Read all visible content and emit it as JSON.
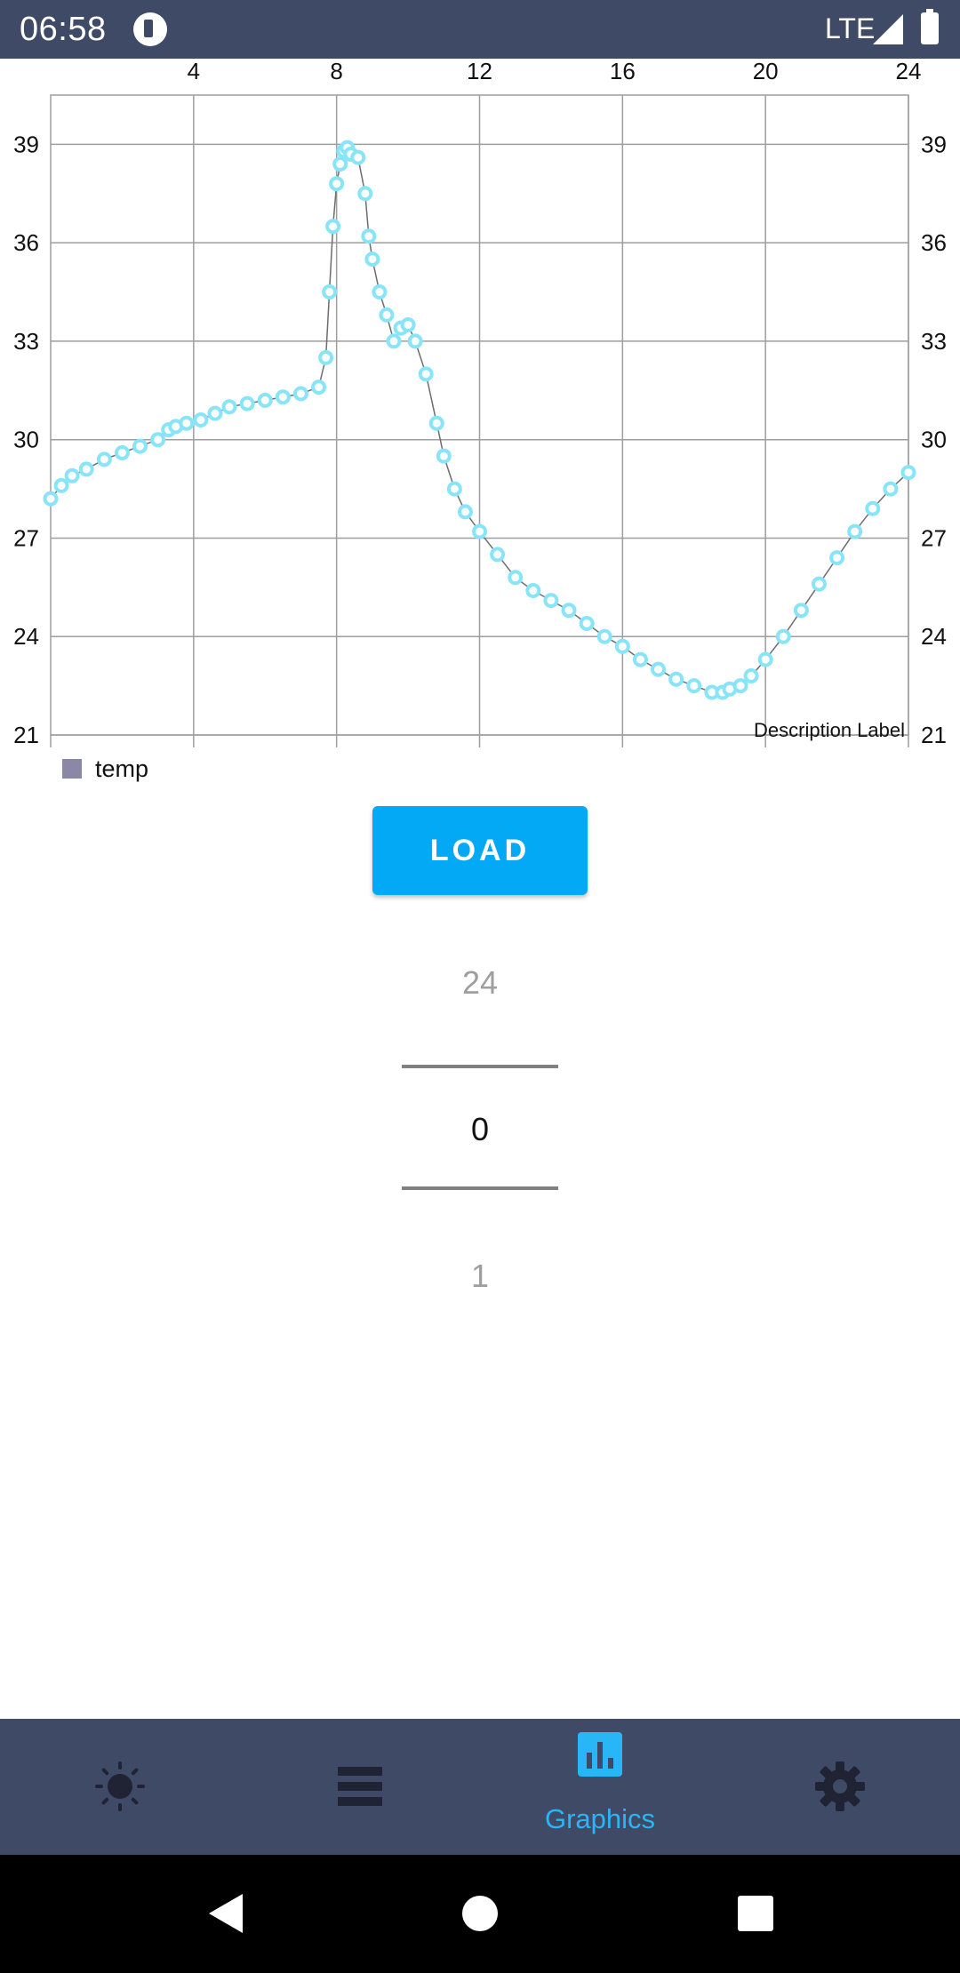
{
  "status_bar": {
    "time": "06:58",
    "network": "LTE",
    "icons": [
      "app-notification-icon",
      "signal-icon",
      "battery-icon"
    ]
  },
  "chart_data": {
    "type": "scatter",
    "x_ticks": [
      4,
      8,
      12,
      16,
      20,
      24
    ],
    "y_ticks": [
      21,
      24,
      27,
      30,
      33,
      36,
      39
    ],
    "xlim": [
      0,
      24
    ],
    "ylim": [
      21,
      40.5
    ],
    "grid": true,
    "legend": "bottom-left",
    "description": "Description Label",
    "series": [
      {
        "name": "temp",
        "color": "#88e5f9",
        "x": [
          0.0,
          0.3,
          0.6,
          1.0,
          1.5,
          2.0,
          2.5,
          3.0,
          3.3,
          3.5,
          3.8,
          4.2,
          4.6,
          5.0,
          5.5,
          6.0,
          6.5,
          7.0,
          7.5,
          7.7,
          7.8,
          7.9,
          8.0,
          8.1,
          8.2,
          8.3,
          8.4,
          8.6,
          8.8,
          8.9,
          9.0,
          9.2,
          9.4,
          9.6,
          9.8,
          10.0,
          10.2,
          10.5,
          10.8,
          11.0,
          11.3,
          11.6,
          12.0,
          12.5,
          13.0,
          13.5,
          14.0,
          14.5,
          15.0,
          15.5,
          16.0,
          16.5,
          17.0,
          17.5,
          18.0,
          18.5,
          18.8,
          19.0,
          19.3,
          19.6,
          20.0,
          20.5,
          21.0,
          21.5,
          22.0,
          22.5,
          23.0,
          23.5,
          24.0
        ],
        "y": [
          28.2,
          28.6,
          28.9,
          29.1,
          29.4,
          29.6,
          29.8,
          30.0,
          30.3,
          30.4,
          30.5,
          30.6,
          30.8,
          31.0,
          31.1,
          31.2,
          31.3,
          31.4,
          31.6,
          32.5,
          34.5,
          36.5,
          37.8,
          38.4,
          38.8,
          38.9,
          38.7,
          38.6,
          37.5,
          36.2,
          35.5,
          34.5,
          33.8,
          33.0,
          33.4,
          33.5,
          33.0,
          32.0,
          30.5,
          29.5,
          28.5,
          27.8,
          27.2,
          26.5,
          25.8,
          25.4,
          25.1,
          24.8,
          24.4,
          24.0,
          23.7,
          23.3,
          23.0,
          22.7,
          22.5,
          22.3,
          22.3,
          22.4,
          22.5,
          22.8,
          23.3,
          24.0,
          24.8,
          25.6,
          26.4,
          27.2,
          27.9,
          28.5,
          29.0
        ]
      }
    ]
  },
  "controls": {
    "load_label": "LOAD"
  },
  "picker": {
    "previous": "24",
    "current": "0",
    "next": "1"
  },
  "bottom_nav": {
    "items": [
      {
        "icon": "brightness-icon",
        "label": ""
      },
      {
        "icon": "list-icon",
        "label": ""
      },
      {
        "icon": "bar-chart-icon",
        "label": "Graphics"
      },
      {
        "icon": "settings-gear-icon",
        "label": ""
      }
    ],
    "active_color": "#29b6f6",
    "inactive_color": "#1f2333"
  },
  "system_nav": {
    "icons": [
      "back-icon",
      "home-icon",
      "recents-icon"
    ]
  }
}
